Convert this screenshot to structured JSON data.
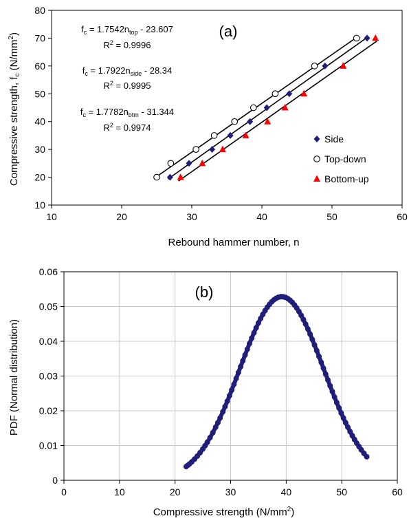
{
  "chart_data": [
    {
      "type": "scatter",
      "panel_label": "(a)",
      "xlabel": "Rebound hammer number, n",
      "ylabel": "Compressive strength, f",
      "ylabel_sub": "c",
      "ylabel_unit": " (N/mm",
      "ylabel_unit_sup": "2",
      "ylabel_unit_end": ")",
      "xlim": [
        10,
        60
      ],
      "ylim": [
        10,
        80
      ],
      "xticks": [
        10,
        20,
        30,
        40,
        50,
        60
      ],
      "yticks": [
        10,
        20,
        30,
        40,
        50,
        60,
        70,
        80
      ],
      "grid": false,
      "legend_position": "right",
      "series": [
        {
          "name": "Side",
          "marker": "diamond",
          "color": "#1f1f7a",
          "x": [
            26.9,
            29.6,
            32.9,
            35.5,
            38.3,
            40.7,
            43.9,
            49.0,
            55.0
          ],
          "y": [
            20,
            25,
            30,
            35,
            40,
            45,
            50,
            60,
            70
          ],
          "fit": {
            "slope": 1.7922,
            "intercept": -28.34
          }
        },
        {
          "name": "Top-down",
          "marker": "circle",
          "color": "#000000",
          "x": [
            25.0,
            27.0,
            30.6,
            33.2,
            36.1,
            38.8,
            41.9,
            47.5,
            53.5
          ],
          "y": [
            20,
            25,
            30,
            35,
            40,
            45,
            50,
            60,
            70
          ],
          "fit": {
            "slope": 1.7542,
            "intercept": -23.607
          }
        },
        {
          "name": "Bottom-up",
          "marker": "triangle",
          "color": "#ff0000",
          "x": [
            28.4,
            31.5,
            34.4,
            37.7,
            40.8,
            43.3,
            46.0,
            51.6,
            56.2
          ],
          "y": [
            20,
            25,
            30,
            35,
            40,
            45,
            50,
            60,
            70
          ],
          "fit": {
            "slope": 1.7782,
            "intercept": -31.344
          }
        }
      ],
      "annotations": [
        {
          "prefix": "f",
          "prefix_sub": "c",
          "mid": " = 1.7542n",
          "sub": "top",
          "suffix": " - 23.607",
          "r2": "0.9996"
        },
        {
          "prefix": "f",
          "prefix_sub": "c",
          "mid": " = 1.7922n",
          "sub": "side",
          "suffix": " - 28.34",
          "r2": "0.9995"
        },
        {
          "prefix": "f",
          "prefix_sub": "c",
          "mid": " = 1.7782n",
          "sub": "btm",
          "suffix": " - 31.344",
          "r2": "0.9974"
        }
      ],
      "r2_prefix": "R",
      "r2_sup": "2",
      "r2_eq": " = "
    },
    {
      "type": "scatter",
      "panel_label": "(b)",
      "xlabel": "Compressive strength (N/mm",
      "xlabel_sup": "2",
      "xlabel_end": ")",
      "ylabel": "PDF (Normal distribution)",
      "xlim": [
        0,
        60
      ],
      "ylim": [
        0,
        0.06
      ],
      "xticks": [
        0,
        10,
        20,
        30,
        40,
        50,
        60
      ],
      "yticks": [
        "0",
        "0.01",
        "0.02",
        "0.03",
        "0.04",
        "0.05",
        "0.06"
      ],
      "grid": true,
      "curve": {
        "distribution": "normal",
        "mean": 39.2,
        "sd": 7.55,
        "x_min": 22.0,
        "x_max": 54.5,
        "color": "#1f1f7a"
      },
      "series": [
        {
          "color": "#1f1f7a",
          "x": [
            22.0,
            22.3,
            22.6,
            23.0,
            23.5,
            24.0,
            24.5,
            25.0,
            25.4,
            25.8,
            26.3,
            26.8,
            27.3,
            27.7,
            28.1,
            28.6,
            29.0,
            29.4,
            29.8,
            30.2,
            30.6,
            31.0,
            31.4,
            31.8,
            32.2,
            32.6,
            33.0,
            33.4,
            33.8,
            34.2,
            34.6,
            35.0,
            35.4,
            35.8,
            36.2,
            36.6,
            37.0,
            37.4,
            37.8,
            38.2,
            38.6,
            39.0,
            39.2,
            39.5,
            39.9,
            40.3,
            40.7,
            41.1,
            41.5,
            41.9,
            42.3,
            42.7,
            43.1,
            43.5,
            43.9,
            44.3,
            44.7,
            45.1,
            45.5,
            45.9,
            46.3,
            46.7,
            47.1,
            47.5,
            47.9,
            48.3,
            48.7,
            49.1,
            49.5,
            49.9,
            50.3,
            50.7,
            51.1,
            51.5,
            51.9,
            52.3,
            52.7,
            53.1,
            53.5,
            54.0,
            54.5
          ]
        }
      ]
    }
  ]
}
